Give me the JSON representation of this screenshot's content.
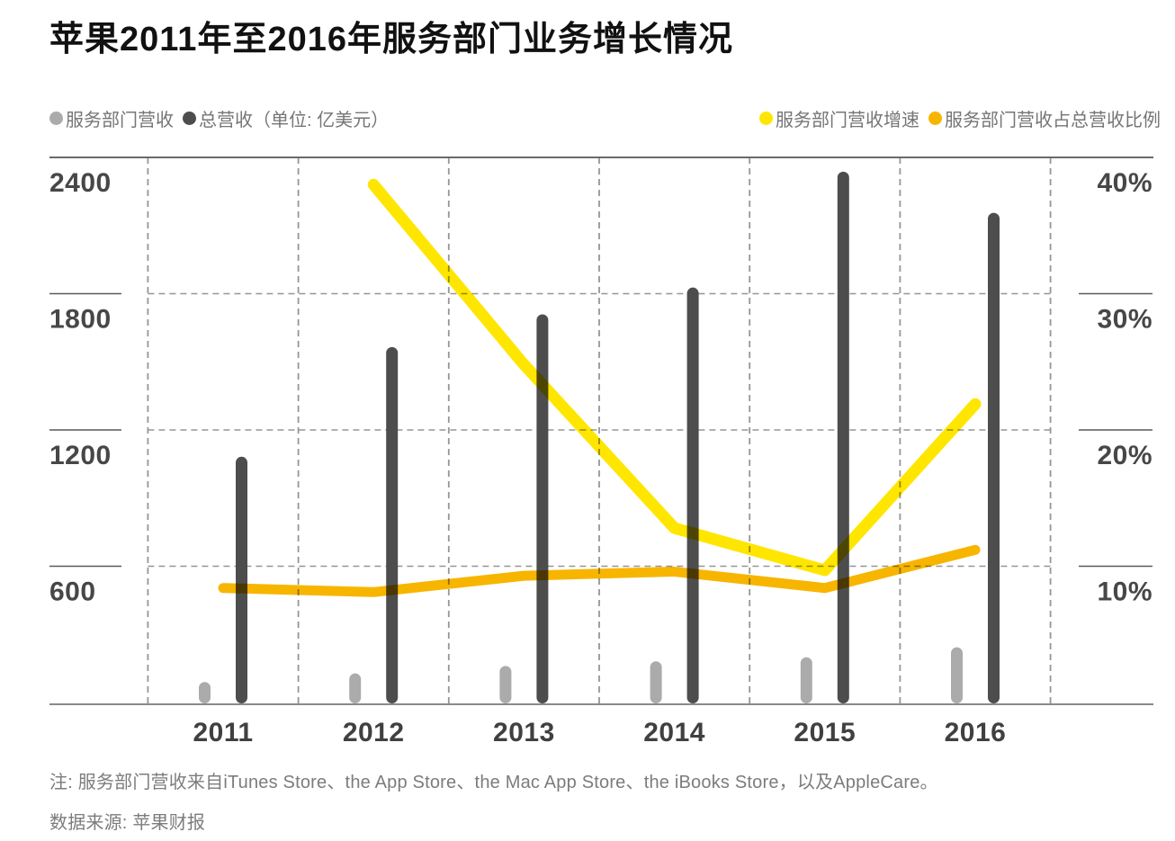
{
  "title": "苹果2011年至2016年服务部门业务增长情况",
  "legend": {
    "left": [
      {
        "label": "服务部门营收",
        "color": "#ABABAB"
      },
      {
        "label": "总营收（单位: 亿美元）",
        "color": "#4D4D4D"
      }
    ],
    "right": [
      {
        "label": "服务部门营收增速",
        "color": "#FFE600"
      },
      {
        "label": "服务部门营收占总营收比例",
        "color": "#F7B500"
      }
    ]
  },
  "chart_data": {
    "type": "bar+line combo",
    "categories": [
      "2011",
      "2012",
      "2013",
      "2014",
      "2015",
      "2016"
    ],
    "series": [
      {
        "name": "服务部门营收",
        "type": "bar",
        "axis": "left",
        "color": "#ABABAB",
        "values": [
          90,
          128,
          161,
          181,
          199,
          243
        ]
      },
      {
        "name": "总营收",
        "type": "bar",
        "axis": "left",
        "color": "#4D4D4D",
        "values": [
          1082,
          1565,
          1709,
          1827,
          2337,
          2156
        ]
      },
      {
        "name": "服务部门营收增速",
        "type": "line",
        "axis": "right",
        "color": "#FFE600",
        "values": [
          null,
          38,
          24.8,
          12.8,
          9.7,
          21.9
        ]
      },
      {
        "name": "服务部门营收占总营收比例",
        "type": "line",
        "axis": "right",
        "color": "#F7B500",
        "values": [
          8.4,
          8.1,
          9.3,
          9.6,
          8.4,
          11.2
        ]
      }
    ],
    "left_axis": {
      "unit": "亿美元",
      "tick_labels": [
        "2400",
        "1800",
        "1200",
        "600"
      ],
      "tick_values": [
        2400,
        1800,
        1200,
        600
      ],
      "range": [
        0,
        2400
      ]
    },
    "right_axis": {
      "tick_labels": [
        "40%",
        "30%",
        "20%",
        "10%"
      ],
      "tick_values": [
        40,
        30,
        20,
        10
      ],
      "range": [
        0,
        40
      ]
    },
    "grid": "dashed",
    "legend_position": "top"
  },
  "note": "注: 服务部门营收来自iTunes Store、the App Store、the Mac App Store、the iBooks Store，以及AppleCare。",
  "source": "数据来源: 苹果财报"
}
